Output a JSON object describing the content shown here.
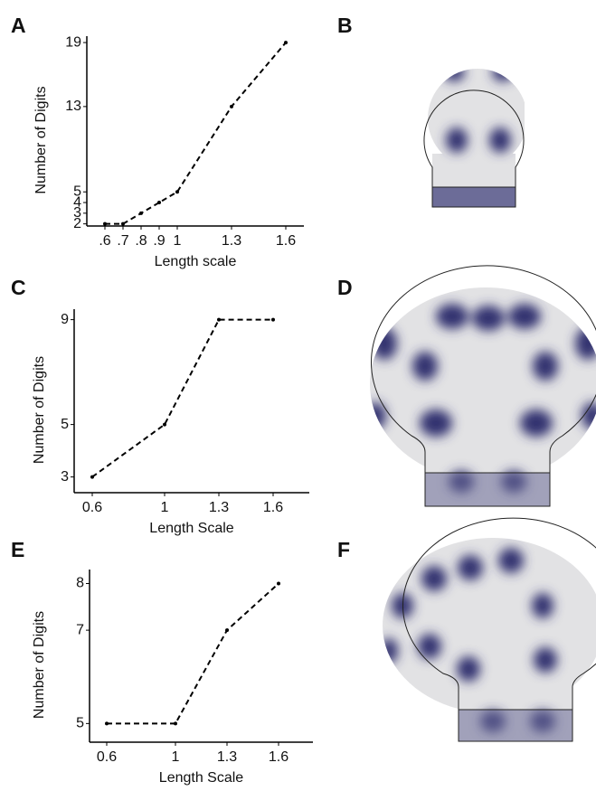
{
  "panel_labels": [
    "A",
    "B",
    "C",
    "D",
    "E",
    "F"
  ],
  "chart_data": [
    {
      "type": "line",
      "xlabel": "Length scale",
      "ylabel": "Number of Digits",
      "color": "#000000",
      "line_style": "dashed",
      "x": [
        0.6,
        0.7,
        0.8,
        0.9,
        1,
        1.3,
        1.6
      ],
      "values": [
        2,
        2,
        3,
        4,
        5,
        13,
        19
      ],
      "xlim": [
        0.5,
        1.7
      ],
      "ylim": [
        1.8,
        19.6
      ],
      "xticks": [
        {
          "value": 0.6,
          "label": ".6"
        },
        {
          "value": 0.7,
          "label": ".7"
        },
        {
          "value": 0.8,
          "label": ".8"
        },
        {
          "value": 0.9,
          "label": ".9"
        },
        1,
        1.3,
        1.6
      ],
      "yticks": [
        2,
        3,
        4,
        5,
        13,
        19
      ]
    },
    {
      "type": "line",
      "xlabel": "Length Scale",
      "ylabel": "Number of Digits",
      "color": "#000000",
      "line_style": "dashed",
      "x": [
        0.6,
        1,
        1.3,
        1.6
      ],
      "values": [
        3,
        5,
        9,
        9
      ],
      "xlim": [
        0.5,
        1.8
      ],
      "ylim": [
        2.4,
        9.4
      ],
      "xticks": [
        0.6,
        1,
        1.3,
        1.6
      ],
      "yticks": [
        3,
        5,
        9
      ]
    },
    {
      "type": "line",
      "xlabel": "Length Scale",
      "ylabel": "Number of Digits",
      "color": "#000000",
      "line_style": "dashed",
      "x": [
        0.6,
        1,
        1.3,
        1.6
      ],
      "values": [
        5,
        5,
        7,
        8
      ],
      "xlim": [
        0.5,
        1.8
      ],
      "ylim": [
        4.6,
        8.3
      ],
      "xticks": [
        0.6,
        1,
        1.3,
        1.6
      ],
      "yticks": [
        5,
        7,
        8
      ]
    }
  ]
}
